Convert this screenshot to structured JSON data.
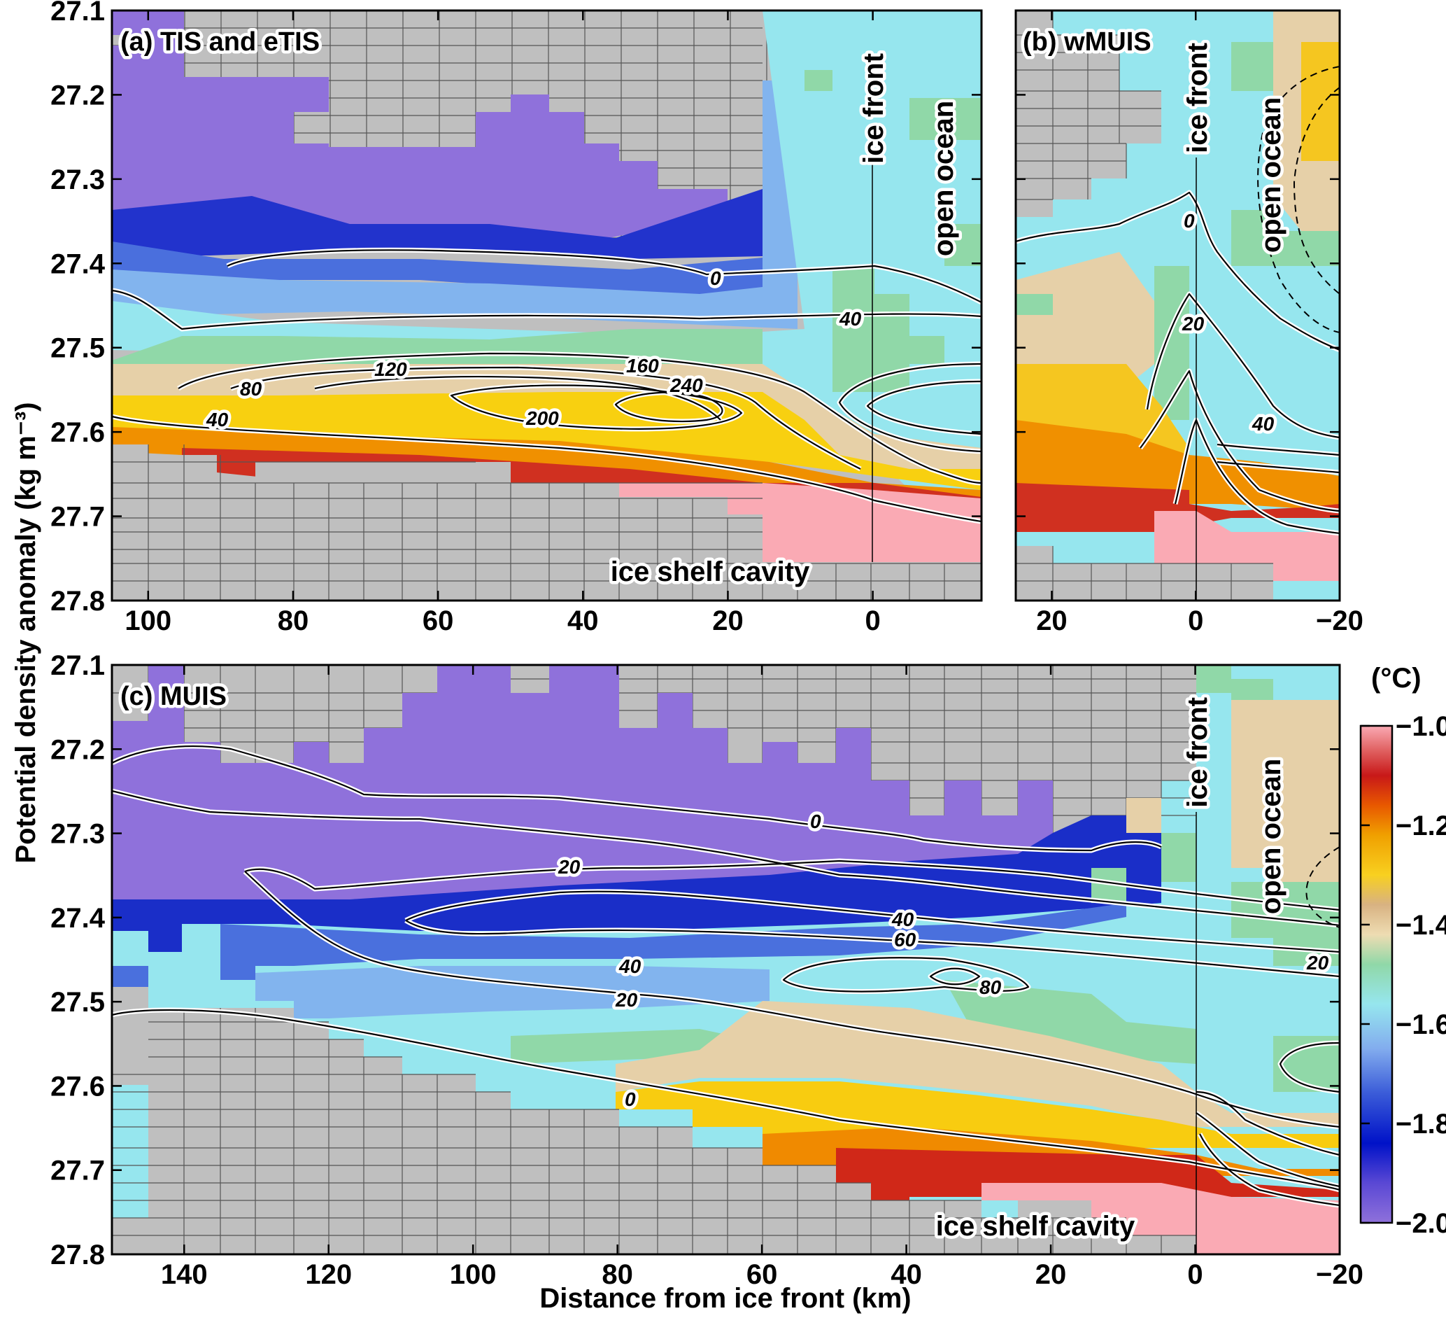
{
  "figure": {
    "y_axis_label": "Potential density anomaly (kg m⁻³)",
    "x_axis_label": "Distance from ice front (km)"
  },
  "colorbar": {
    "unit": "(°C)",
    "ticks": [
      "−1.0",
      "−1.2",
      "−1.4",
      "−1.6",
      "−1.8",
      "−2.0"
    ],
    "range": [
      -2.0,
      -1.0
    ],
    "colors": [
      "#8f71db",
      "#0012c8",
      "#3a5bd8",
      "#82acee",
      "#96e6ee",
      "#90d8a8",
      "#eedcb2",
      "#d8b282",
      "#f8d020",
      "#f0a000",
      "#e85800",
      "#c81818",
      "#e06060",
      "#faaab4"
    ]
  },
  "chart_data": [
    {
      "type": "heatmap",
      "panel_label": "(a) TIS and eTIS",
      "x_ticks": [
        "100",
        "80",
        "60",
        "40",
        "20",
        "0"
      ],
      "y_ticks": [
        "27.1",
        "27.2",
        "27.3",
        "27.4",
        "27.5",
        "27.6",
        "27.7",
        "27.8"
      ],
      "xlim": [
        105,
        -15
      ],
      "ylim": [
        27.1,
        27.8
      ],
      "ice_front_x": 0,
      "contour_labels": [
        "0",
        "40",
        "80",
        "120",
        "160",
        "200",
        "240",
        "40"
      ],
      "annotations": [
        "ice front",
        "open ocean",
        "ice shelf cavity"
      ]
    },
    {
      "type": "heatmap",
      "panel_label": "(b) wMUIS",
      "x_ticks": [
        "20",
        "0",
        "−20"
      ],
      "y_ticks": [
        "27.1",
        "27.2",
        "27.3",
        "27.4",
        "27.5",
        "27.6",
        "27.7",
        "27.8"
      ],
      "xlim": [
        25,
        -20
      ],
      "ylim": [
        27.1,
        27.8
      ],
      "ice_front_x": 0,
      "contour_labels": [
        "0",
        "20",
        "40"
      ],
      "annotations": [
        "ice front",
        "open ocean"
      ]
    },
    {
      "type": "heatmap",
      "panel_label": "(c) MUIS",
      "x_ticks": [
        "140",
        "120",
        "100",
        "80",
        "60",
        "40",
        "20",
        "0",
        "−20"
      ],
      "y_ticks": [
        "27.1",
        "27.2",
        "27.3",
        "27.4",
        "27.5",
        "27.6",
        "27.7",
        "27.8"
      ],
      "xlim": [
        150,
        -20
      ],
      "ylim": [
        27.1,
        27.8
      ],
      "ice_front_x": 0,
      "contour_labels": [
        "0",
        "20",
        "40",
        "60",
        "80",
        "40",
        "20",
        "20",
        "0"
      ],
      "annotations": [
        "ice front",
        "open ocean",
        "ice shelf cavity"
      ]
    }
  ]
}
